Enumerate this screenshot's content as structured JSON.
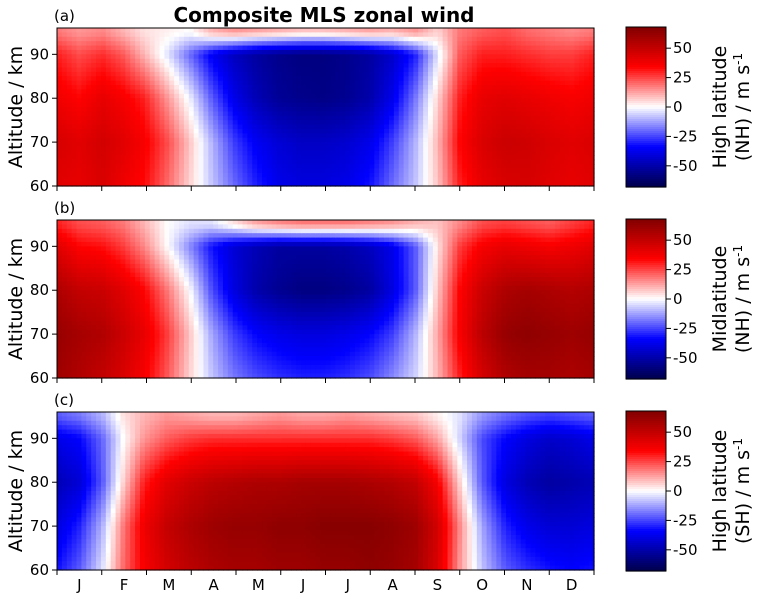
{
  "figure_title": "Composite MLS zonal wind",
  "colormap": {
    "name": "seismic",
    "stops": [
      "#00004c",
      "#0000ff",
      "#ffffff",
      "#ff0000",
      "#800000"
    ],
    "range": [
      -68,
      68
    ]
  },
  "chart_data": [
    {
      "type": "heatmap",
      "panel_label": "(a)",
      "title": "Composite MLS zonal wind",
      "ylabel": "Altitude / km",
      "ylim": [
        60,
        96
      ],
      "yticks": [
        60,
        70,
        80,
        90
      ],
      "months": [
        "J",
        "F",
        "M",
        "A",
        "M",
        "J",
        "J",
        "A",
        "S",
        "O",
        "N",
        "D"
      ],
      "show_xticklabels": false,
      "colorbar": {
        "label_line1": "High latitude",
        "label_line2": "(NH) / m s",
        "unit_exp": "-1",
        "ticks": [
          50,
          25,
          0,
          -25,
          -50
        ],
        "range": [
          -68,
          68
        ]
      },
      "x_days": [
        1,
        16,
        32,
        46,
        60,
        76,
        91,
        106,
        121,
        136,
        152,
        167,
        182,
        197,
        213,
        228,
        244,
        259,
        274,
        289,
        305,
        320,
        335,
        350,
        365
      ],
      "y_km": [
        60,
        70,
        80,
        90,
        95
      ],
      "z": [
        [
          42,
          40,
          44,
          38,
          33,
          20,
          6,
          -8,
          -20,
          -30,
          -38,
          -40,
          -40,
          -38,
          -32,
          -20,
          -8,
          8,
          30,
          40,
          44,
          45,
          42,
          40,
          42
        ],
        [
          45,
          42,
          46,
          42,
          36,
          24,
          8,
          -10,
          -26,
          -36,
          -42,
          -45,
          -45,
          -43,
          -38,
          -26,
          -10,
          10,
          34,
          44,
          48,
          47,
          44,
          42,
          44
        ],
        [
          38,
          34,
          40,
          36,
          30,
          14,
          -2,
          -22,
          -38,
          -48,
          -54,
          -56,
          -57,
          -55,
          -50,
          -38,
          -18,
          6,
          30,
          40,
          42,
          40,
          38,
          36,
          38
        ],
        [
          30,
          24,
          28,
          22,
          10,
          -4,
          -20,
          -36,
          -46,
          -52,
          -56,
          -58,
          -58,
          -56,
          -52,
          -44,
          -30,
          -4,
          22,
          30,
          30,
          28,
          26,
          26,
          30
        ],
        [
          18,
          14,
          16,
          10,
          4,
          2,
          0,
          10,
          14,
          12,
          10,
          8,
          8,
          10,
          12,
          10,
          14,
          6,
          18,
          22,
          24,
          20,
          18,
          16,
          18
        ]
      ]
    },
    {
      "type": "heatmap",
      "panel_label": "(b)",
      "title": "",
      "ylabel": "Altitude / km",
      "ylim": [
        60,
        96
      ],
      "yticks": [
        60,
        70,
        80,
        90
      ],
      "months": [
        "J",
        "F",
        "M",
        "A",
        "M",
        "J",
        "J",
        "A",
        "S",
        "O",
        "N",
        "D"
      ],
      "show_xticklabels": false,
      "colorbar": {
        "label_line1": "Midlatitude",
        "label_line2": "(NH) / m s",
        "unit_exp": "-1",
        "ticks": [
          50,
          25,
          0,
          -25,
          -50
        ],
        "range": [
          -68,
          68
        ]
      },
      "x_days": [
        1,
        16,
        32,
        46,
        60,
        76,
        91,
        106,
        121,
        136,
        152,
        167,
        182,
        197,
        213,
        228,
        244,
        259,
        274,
        289,
        305,
        320,
        335,
        350,
        365
      ],
      "y_km": [
        60,
        70,
        80,
        90,
        95
      ],
      "z": [
        [
          60,
          55,
          50,
          44,
          36,
          22,
          6,
          -8,
          -18,
          -24,
          -28,
          -30,
          -30,
          -28,
          -24,
          -16,
          -6,
          10,
          30,
          45,
          55,
          58,
          58,
          56,
          58
        ],
        [
          62,
          58,
          55,
          48,
          40,
          26,
          8,
          -12,
          -26,
          -34,
          -38,
          -40,
          -40,
          -38,
          -34,
          -26,
          -10,
          12,
          36,
          52,
          62,
          64,
          62,
          60,
          62
        ],
        [
          56,
          50,
          48,
          42,
          34,
          18,
          0,
          -24,
          -40,
          -50,
          -55,
          -58,
          -58,
          -56,
          -52,
          -40,
          -22,
          8,
          34,
          48,
          56,
          58,
          56,
          54,
          56
        ],
        [
          42,
          34,
          32,
          26,
          16,
          0,
          -16,
          -32,
          -42,
          -48,
          -52,
          -52,
          -52,
          -50,
          -46,
          -38,
          -22,
          4,
          26,
          36,
          40,
          38,
          36,
          38,
          42
        ],
        [
          30,
          24,
          22,
          18,
          10,
          0,
          -4,
          -4,
          4,
          12,
          16,
          18,
          18,
          18,
          16,
          14,
          10,
          8,
          16,
          24,
          26,
          24,
          22,
          26,
          30
        ]
      ]
    },
    {
      "type": "heatmap",
      "panel_label": "(c)",
      "title": "",
      "ylabel": "Altitude / km",
      "ylim": [
        60,
        96
      ],
      "yticks": [
        60,
        70,
        80,
        90
      ],
      "months": [
        "J",
        "F",
        "M",
        "A",
        "M",
        "J",
        "J",
        "A",
        "S",
        "O",
        "N",
        "D"
      ],
      "show_xticklabels": true,
      "colorbar": {
        "label_line1": "High latitude",
        "label_line2": "(SH) / m s",
        "unit_exp": "-1",
        "ticks": [
          50,
          25,
          0,
          -25,
          -50
        ],
        "range": [
          -68,
          68
        ]
      },
      "x_days": [
        1,
        16,
        32,
        46,
        60,
        76,
        91,
        106,
        121,
        136,
        152,
        167,
        182,
        197,
        213,
        228,
        244,
        259,
        274,
        289,
        305,
        320,
        335,
        350,
        365
      ],
      "y_km": [
        60,
        70,
        80,
        90,
        95
      ],
      "z": [
        [
          -32,
          -22,
          -4,
          20,
          36,
          46,
          52,
          56,
          58,
          58,
          60,
          60,
          62,
          62,
          64,
          62,
          58,
          44,
          14,
          -8,
          -22,
          -28,
          -32,
          -34,
          -32
        ],
        [
          -40,
          -30,
          -10,
          18,
          38,
          50,
          56,
          60,
          62,
          62,
          64,
          64,
          66,
          66,
          66,
          64,
          60,
          46,
          16,
          -12,
          -30,
          -38,
          -42,
          -42,
          -40
        ],
        [
          -48,
          -42,
          -22,
          6,
          30,
          42,
          48,
          52,
          54,
          56,
          56,
          58,
          58,
          58,
          56,
          54,
          50,
          36,
          6,
          -22,
          -40,
          -48,
          -52,
          -50,
          -48
        ],
        [
          -38,
          -34,
          -20,
          0,
          14,
          22,
          26,
          28,
          28,
          28,
          28,
          28,
          28,
          28,
          28,
          26,
          22,
          12,
          -6,
          -24,
          -34,
          -40,
          -44,
          -42,
          -38
        ],
        [
          -22,
          -18,
          -10,
          4,
          10,
          14,
          12,
          10,
          10,
          12,
          14,
          12,
          12,
          14,
          12,
          10,
          8,
          2,
          -4,
          -14,
          -20,
          -24,
          -26,
          -24,
          -22
        ]
      ]
    }
  ]
}
